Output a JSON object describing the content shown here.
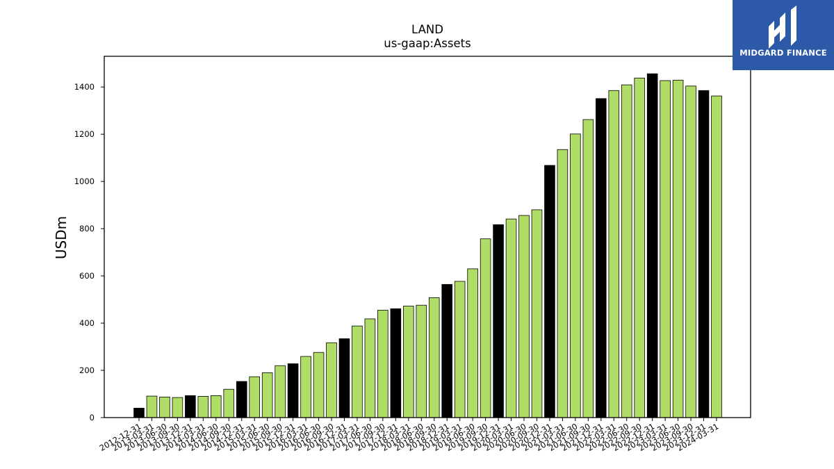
{
  "chart_data": {
    "type": "bar",
    "title": "LAND",
    "subtitle": "us-gaap:Assets",
    "ylabel": "USDm",
    "xlabel": "",
    "ylim": [
      0,
      1530
    ],
    "yticks": [
      0,
      200,
      400,
      600,
      800,
      1000,
      1200,
      1400
    ],
    "grid": false,
    "categories": [
      "2012-12-31",
      "2013-03-31",
      "2013-06-30",
      "2013-09-30",
      "2013-12-31",
      "2014-03-31",
      "2014-06-30",
      "2014-09-30",
      "2014-12-31",
      "2015-03-31",
      "2015-06-30",
      "2015-09-30",
      "2015-12-31",
      "2016-03-31",
      "2016-06-30",
      "2016-09-30",
      "2016-12-31",
      "2017-03-31",
      "2017-06-30",
      "2017-09-30",
      "2017-12-31",
      "2018-03-31",
      "2018-06-30",
      "2018-09-30",
      "2018-12-31",
      "2019-03-31",
      "2019-06-30",
      "2019-09-30",
      "2019-12-31",
      "2020-03-31",
      "2020-06-30",
      "2020-09-30",
      "2020-12-31",
      "2021-03-31",
      "2021-06-30",
      "2021-09-30",
      "2021-12-31",
      "2022-03-31",
      "2022-06-30",
      "2022-09-30",
      "2022-12-31",
      "2023-03-31",
      "2023-06-30",
      "2023-09-30",
      "2023-12-31",
      "2024-03-31"
    ],
    "values": [
      40,
      91,
      87,
      85,
      93,
      90,
      93,
      120,
      153,
      173,
      190,
      220,
      228,
      259,
      276,
      317,
      334,
      388,
      418,
      455,
      461,
      472,
      476,
      508,
      564,
      577,
      630,
      757,
      817,
      841,
      856,
      880,
      1068,
      1135,
      1201,
      1262,
      1351,
      1385,
      1409,
      1438,
      1456,
      1427,
      1429,
      1404,
      1385,
      1362
    ],
    "highlight": [
      true,
      false,
      false,
      false,
      true,
      false,
      false,
      false,
      true,
      false,
      false,
      false,
      true,
      false,
      false,
      false,
      true,
      false,
      false,
      false,
      true,
      false,
      false,
      false,
      true,
      false,
      false,
      false,
      true,
      false,
      false,
      false,
      true,
      false,
      false,
      false,
      true,
      false,
      false,
      false,
      true,
      false,
      false,
      false,
      true,
      false
    ],
    "colors": {
      "bar": "#b0dd68",
      "highlight": "#000000",
      "edge": "#000000"
    }
  },
  "logo": {
    "text": "MIDGARD FINANCE",
    "background": "#2d5aa8",
    "icon": "midgard-bars-icon"
  }
}
